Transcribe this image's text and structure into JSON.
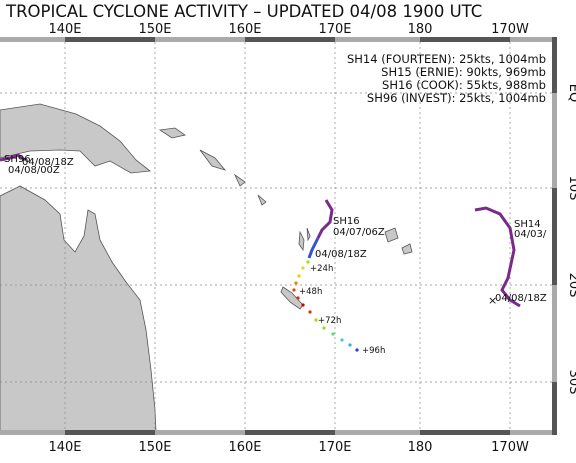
{
  "header": {
    "title": "TROPICAL CYCLONE ACTIVITY – UPDATED 04/08 1900 UTC"
  },
  "axes": {
    "longitudes_top": [
      "140E",
      "150E",
      "160E",
      "170E",
      "180",
      "170W"
    ],
    "longitudes_bottom": [
      "140E",
      "150E",
      "160E",
      "170E",
      "180",
      "170W"
    ],
    "latitudes": [
      "EQ",
      "10S",
      "20S",
      "30S"
    ]
  },
  "legend": [
    "SH14 (FOURTEEN): 25kts, 1004mb",
    "SH15 (ERNIE): 90kts, 969mb",
    "SH16 (COOK): 55kts, 988mb",
    "SH96 (INVEST): 25kts, 1004mb"
  ],
  "storms": [
    {
      "name": "SH96",
      "labels": [
        "04/08/18Z",
        "04/08/00Z"
      ]
    },
    {
      "name": "SH16",
      "labels": [
        "04/07/06Z",
        "04/08/18Z",
        "+24h",
        "+48h",
        "+72h",
        "+96h"
      ]
    },
    {
      "name": "SH14",
      "labels": [
        "04/03/",
        "04/08/18Z"
      ]
    }
  ]
}
